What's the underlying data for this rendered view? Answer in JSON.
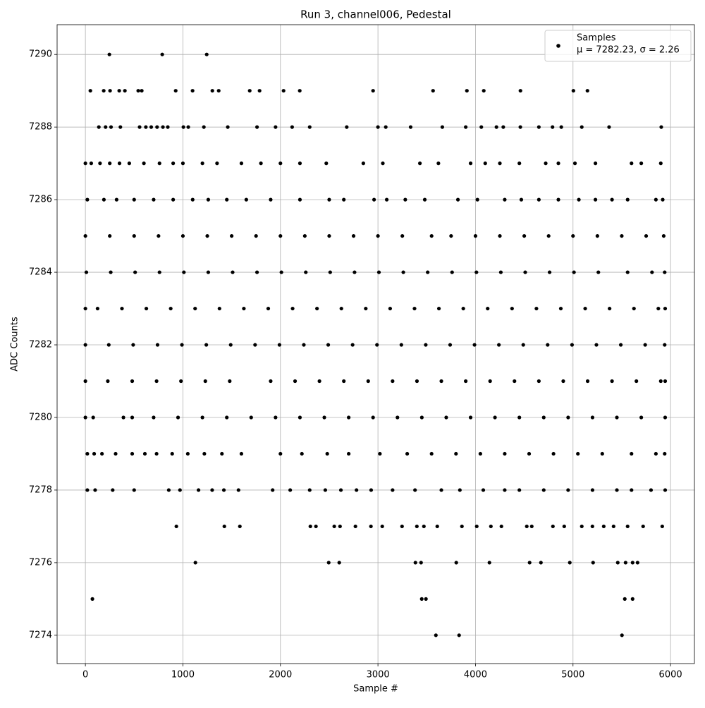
{
  "chart_data": {
    "type": "scatter",
    "title": "Run 3, channel006, Pedestal",
    "xlabel": "Sample #",
    "ylabel": "ADC Counts",
    "legend_stats": "μ = 7282.23, σ = 2.26",
    "legend": "upper right",
    "grid": true,
    "xlim": [
      -290,
      6245
    ],
    "ylim": [
      7273.22,
      7290.82
    ],
    "xticks": [
      0,
      1000,
      2000,
      3000,
      4000,
      5000,
      6000
    ],
    "yticks": [
      7274,
      7276,
      7278,
      7280,
      7282,
      7284,
      7286,
      7288,
      7290
    ],
    "series": [
      {
        "name": "Samples",
        "color": "#000000",
        "x": [
          246,
          788,
          1244,
          51,
          188,
          253,
          347,
          405,
          542,
          578,
          926,
          1099,
          1302,
          1367,
          1685,
          1786,
          2032,
          2198,
          2950,
          3565,
          3912,
          4085,
          4461,
          5004,
          5148,
          138,
          207,
          263,
          359,
          556,
          620,
          675,
          735,
          795,
          845,
          1005,
          1055,
          1215,
          1460,
          1760,
          1950,
          2120,
          2300,
          2680,
          3000,
          3080,
          3335,
          3660,
          3900,
          4060,
          4215,
          4285,
          4460,
          4650,
          4790,
          4880,
          5090,
          5370,
          5905,
          0,
          60,
          150,
          250,
          350,
          450,
          600,
          760,
          900,
          1000,
          1200,
          1350,
          1600,
          1800,
          2000,
          2200,
          2470,
          2850,
          3050,
          3430,
          3620,
          3950,
          4100,
          4250,
          4450,
          4720,
          4850,
          5020,
          5230,
          5600,
          5700,
          5900,
          20,
          190,
          320,
          500,
          700,
          900,
          1100,
          1260,
          1450,
          1650,
          1900,
          2200,
          2500,
          2650,
          2960,
          3090,
          3280,
          3480,
          3820,
          4020,
          4300,
          4470,
          4650,
          4850,
          5060,
          5230,
          5400,
          5560,
          5850,
          5920,
          0,
          250,
          500,
          750,
          1000,
          1250,
          1500,
          1750,
          2000,
          2250,
          2500,
          2750,
          3000,
          3250,
          3550,
          3750,
          4000,
          4250,
          4500,
          4750,
          5000,
          5250,
          5500,
          5750,
          5930,
          10,
          260,
          510,
          760,
          1010,
          1260,
          1510,
          1760,
          2010,
          2260,
          2510,
          2760,
          3010,
          3260,
          3510,
          3760,
          4010,
          4260,
          4510,
          4760,
          5010,
          5260,
          5560,
          5810,
          5940,
          0,
          125,
          375,
          625,
          875,
          1125,
          1375,
          1625,
          1875,
          2125,
          2375,
          2625,
          2875,
          3125,
          3375,
          3625,
          3875,
          4125,
          4375,
          4625,
          4875,
          5125,
          5375,
          5625,
          5875,
          5945,
          0,
          240,
          490,
          740,
          990,
          1240,
          1490,
          1740,
          1990,
          2240,
          2490,
          2740,
          2990,
          3240,
          3490,
          3740,
          3990,
          4240,
          4490,
          4740,
          4990,
          5240,
          5490,
          5740,
          5940,
          0,
          230,
          480,
          730,
          980,
          1230,
          1480,
          1900,
          2150,
          2400,
          2650,
          2900,
          3150,
          3400,
          3650,
          3900,
          4150,
          4400,
          4650,
          4900,
          5150,
          5400,
          5650,
          5900,
          5945,
          0,
          80,
          390,
          480,
          700,
          950,
          1200,
          1450,
          1700,
          1950,
          2200,
          2450,
          2700,
          2950,
          3200,
          3450,
          3700,
          3950,
          4200,
          4450,
          4700,
          4950,
          5200,
          5450,
          5700,
          5945,
          20,
          90,
          170,
          310,
          480,
          610,
          730,
          890,
          1050,
          1220,
          1400,
          1600,
          2000,
          2220,
          2480,
          2700,
          3020,
          3300,
          3550,
          3800,
          4050,
          4300,
          4550,
          4800,
          5050,
          5300,
          5600,
          5850,
          5940,
          20,
          100,
          280,
          500,
          855,
          970,
          1160,
          1300,
          1420,
          1570,
          1920,
          2100,
          2300,
          2460,
          2620,
          2780,
          2930,
          3150,
          3380,
          3650,
          3840,
          4080,
          4300,
          4450,
          4700,
          4950,
          5200,
          5450,
          5600,
          5800,
          5945,
          933,
          1425,
          1584,
          2307,
          2364,
          2552,
          2611,
          2769,
          2928,
          3044,
          3247,
          3399,
          3471,
          3608,
          3861,
          4013,
          4158,
          4266,
          4526,
          4577,
          4794,
          4910,
          5090,
          5199,
          5315,
          5416,
          5560,
          5719,
          5915,
          1128,
          2495,
          2603,
          3384,
          3442,
          3803,
          4143,
          4555,
          4671,
          4967,
          5206,
          5459,
          5539,
          5611,
          5662,
          72,
          3449,
          3492,
          5531,
          5611,
          3594,
          3832,
          5502
        ],
        "values": [
          7290,
          7290,
          7290,
          7289,
          7289,
          7289,
          7289,
          7289,
          7289,
          7289,
          7289,
          7289,
          7289,
          7289,
          7289,
          7289,
          7289,
          7289,
          7289,
          7289,
          7289,
          7289,
          7289,
          7289,
          7289,
          7288,
          7288,
          7288,
          7288,
          7288,
          7288,
          7288,
          7288,
          7288,
          7288,
          7288,
          7288,
          7288,
          7288,
          7288,
          7288,
          7288,
          7288,
          7288,
          7288,
          7288,
          7288,
          7288,
          7288,
          7288,
          7288,
          7288,
          7288,
          7288,
          7288,
          7288,
          7288,
          7288,
          7288,
          7287,
          7287,
          7287,
          7287,
          7287,
          7287,
          7287,
          7287,
          7287,
          7287,
          7287,
          7287,
          7287,
          7287,
          7287,
          7287,
          7287,
          7287,
          7287,
          7287,
          7287,
          7287,
          7287,
          7287,
          7287,
          7287,
          7287,
          7287,
          7287,
          7287,
          7287,
          7287,
          7286,
          7286,
          7286,
          7286,
          7286,
          7286,
          7286,
          7286,
          7286,
          7286,
          7286,
          7286,
          7286,
          7286,
          7286,
          7286,
          7286,
          7286,
          7286,
          7286,
          7286,
          7286,
          7286,
          7286,
          7286,
          7286,
          7286,
          7286,
          7286,
          7286,
          7285,
          7285,
          7285,
          7285,
          7285,
          7285,
          7285,
          7285,
          7285,
          7285,
          7285,
          7285,
          7285,
          7285,
          7285,
          7285,
          7285,
          7285,
          7285,
          7285,
          7285,
          7285,
          7285,
          7285,
          7285,
          7284,
          7284,
          7284,
          7284,
          7284,
          7284,
          7284,
          7284,
          7284,
          7284,
          7284,
          7284,
          7284,
          7284,
          7284,
          7284,
          7284,
          7284,
          7284,
          7284,
          7284,
          7284,
          7284,
          7284,
          7284,
          7283,
          7283,
          7283,
          7283,
          7283,
          7283,
          7283,
          7283,
          7283,
          7283,
          7283,
          7283,
          7283,
          7283,
          7283,
          7283,
          7283,
          7283,
          7283,
          7283,
          7283,
          7283,
          7283,
          7283,
          7283,
          7283,
          7282,
          7282,
          7282,
          7282,
          7282,
          7282,
          7282,
          7282,
          7282,
          7282,
          7282,
          7282,
          7282,
          7282,
          7282,
          7282,
          7282,
          7282,
          7282,
          7282,
          7282,
          7282,
          7282,
          7282,
          7282,
          7281,
          7281,
          7281,
          7281,
          7281,
          7281,
          7281,
          7281,
          7281,
          7281,
          7281,
          7281,
          7281,
          7281,
          7281,
          7281,
          7281,
          7281,
          7281,
          7281,
          7281,
          7281,
          7281,
          7281,
          7281,
          7280,
          7280,
          7280,
          7280,
          7280,
          7280,
          7280,
          7280,
          7280,
          7280,
          7280,
          7280,
          7280,
          7280,
          7280,
          7280,
          7280,
          7280,
          7280,
          7280,
          7280,
          7280,
          7280,
          7280,
          7280,
          7280,
          7279,
          7279,
          7279,
          7279,
          7279,
          7279,
          7279,
          7279,
          7279,
          7279,
          7279,
          7279,
          7279,
          7279,
          7279,
          7279,
          7279,
          7279,
          7279,
          7279,
          7279,
          7279,
          7279,
          7279,
          7279,
          7279,
          7279,
          7279,
          7279,
          7278,
          7278,
          7278,
          7278,
          7278,
          7278,
          7278,
          7278,
          7278,
          7278,
          7278,
          7278,
          7278,
          7278,
          7278,
          7278,
          7278,
          7278,
          7278,
          7278,
          7278,
          7278,
          7278,
          7278,
          7278,
          7278,
          7278,
          7278,
          7278,
          7278,
          7278,
          7277,
          7277,
          7277,
          7277,
          7277,
          7277,
          7277,
          7277,
          7277,
          7277,
          7277,
          7277,
          7277,
          7277,
          7277,
          7277,
          7277,
          7277,
          7277,
          7277,
          7277,
          7277,
          7277,
          7277,
          7277,
          7277,
          7277,
          7277,
          7277,
          7276,
          7276,
          7276,
          7276,
          7276,
          7276,
          7276,
          7276,
          7276,
          7276,
          7276,
          7276,
          7276,
          7276,
          7276,
          7275,
          7275,
          7275,
          7275,
          7275,
          7274,
          7274,
          7274
        ]
      }
    ]
  }
}
